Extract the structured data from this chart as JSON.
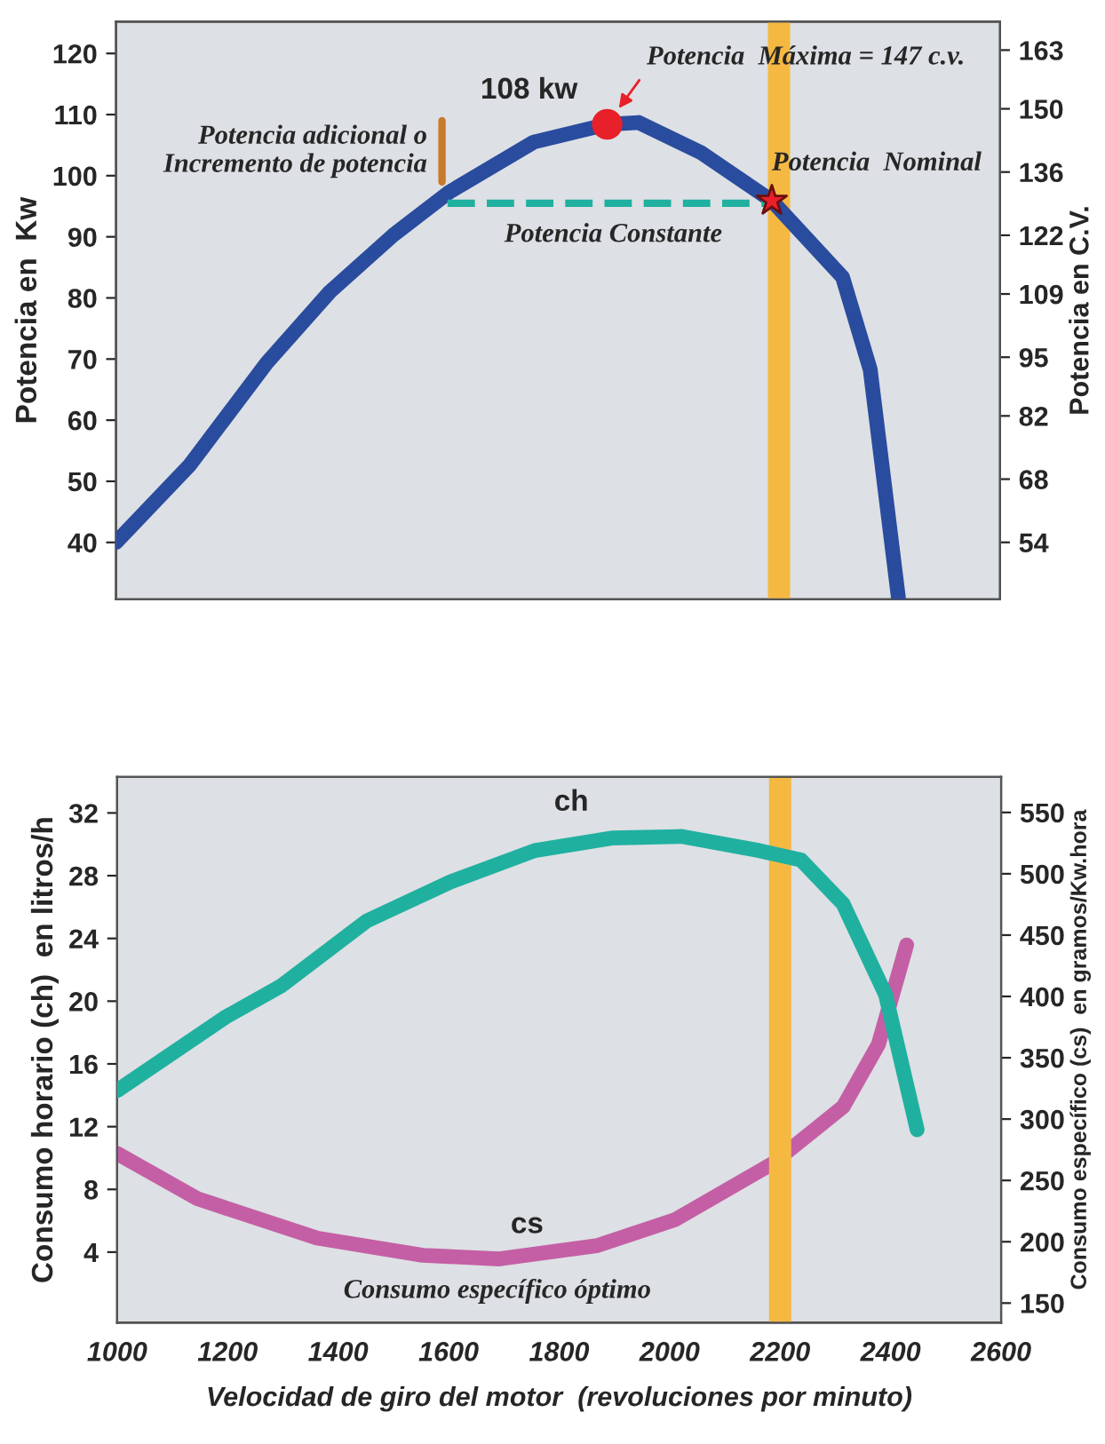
{
  "chart_data": [
    {
      "type": "line",
      "ylabel": "Potencia en  Kw",
      "y2label": "Potencia en C.V.",
      "xlim": [
        1000,
        2600
      ],
      "ylim": [
        30.7,
        125.2
      ],
      "yticks": [
        40,
        50,
        60,
        70,
        80,
        90,
        100,
        110,
        120
      ],
      "y2lim": [
        41.4,
        169.3
      ],
      "y2ticks": [
        54,
        68,
        82,
        95,
        109,
        122,
        136,
        150,
        163
      ],
      "tick_labels": "y",
      "grid": false,
      "legend": false,
      "series": [
        {
          "color": "#2a4c9e",
          "x": [
            1000,
            1133,
            1273,
            1387,
            1502,
            1603,
            1756,
            1889,
            1946,
            2060,
            2187,
            2315,
            2365,
            2416
          ],
          "values": [
            40,
            52.6,
            69.4,
            81,
            90.3,
            97.3,
            105.5,
            108.4,
            108.7,
            103.7,
            95.9,
            83.4,
            68.3,
            31
          ]
        },
        {
          "color": "#20b0a0",
          "line_style": "dashed",
          "x": [
            1600,
            2200
          ],
          "values": [
            95.5,
            95.5
          ]
        },
        {
          "color": "#c87a2a",
          "x": [
            1590,
            1590
          ],
          "values": [
            99,
            109
          ]
        },
        {
          "type": "scatter",
          "color": "#e8202a",
          "marker": "circle",
          "x": [
            1889
          ],
          "values": [
            108.4
          ]
        },
        {
          "type": "scatter",
          "color": "#e8202a",
          "marker": "star",
          "x": [
            2187
          ],
          "values": [
            95.9
          ]
        }
      ],
      "ref_lines": [
        {
          "axis": "x",
          "value": 2200,
          "color": "#f5b942"
        }
      ],
      "annotations": [
        {
          "text": "108 kw",
          "x": 1889,
          "y": 108.4
        },
        {
          "text": "Potencia  Máxima = 147 c.v.",
          "x": 1889,
          "y": 108.4
        },
        {
          "text": "Potencia  Nominal",
          "x": 2187,
          "y": 95.9
        },
        {
          "text": "Potencia adicional o\nIncremento de potencia",
          "x": 1590,
          "y": 104
        },
        {
          "text": "Potencia Constante",
          "x": 1900,
          "y": 95.5
        }
      ]
    },
    {
      "type": "line",
      "xlabel": "Velocidad de giro del motor  (revoluciones por minuto)",
      "ylabel": "Consumo horario (ch)  en litros/h",
      "y2label": "Consumo específico (cs)  en gramos/Kw.hora",
      "xlim": [
        1000,
        2600
      ],
      "xticks": [
        1000,
        1200,
        1400,
        1600,
        1800,
        2000,
        2200,
        2400,
        2600
      ],
      "ylim": [
        -0.5,
        34.3
      ],
      "yticks": [
        4,
        8,
        12,
        16,
        20,
        24,
        28,
        32
      ],
      "y2lim": [
        134,
        579
      ],
      "y2ticks": [
        150,
        200,
        250,
        300,
        350,
        400,
        450,
        500,
        550
      ],
      "grid": false,
      "legend": false,
      "series": [
        {
          "name": "ch",
          "color": "#20b0a0",
          "x": [
            1000,
            1197,
            1298,
            1451,
            1603,
            1756,
            1895,
            2022,
            2162,
            2238,
            2314,
            2391,
            2448
          ],
          "values": [
            14.3,
            19.0,
            21.0,
            25.1,
            27.6,
            29.6,
            30.4,
            30.5,
            29.6,
            29.0,
            26.2,
            20.4,
            11.8
          ]
        },
        {
          "name": "cs",
          "axis": "y2",
          "color": "#c45fa5",
          "x": [
            1000,
            1146,
            1362,
            1553,
            1692,
            1870,
            2010,
            2187,
            2314,
            2378,
            2429
          ],
          "values": [
            272,
            235,
            203,
            189,
            186,
            197,
            218,
            264,
            310,
            361,
            442
          ]
        }
      ],
      "ref_lines": [
        {
          "axis": "x",
          "value": 2200,
          "color": "#f5b942"
        }
      ],
      "annotations": [
        "Consumo específico óptimo"
      ]
    }
  ]
}
